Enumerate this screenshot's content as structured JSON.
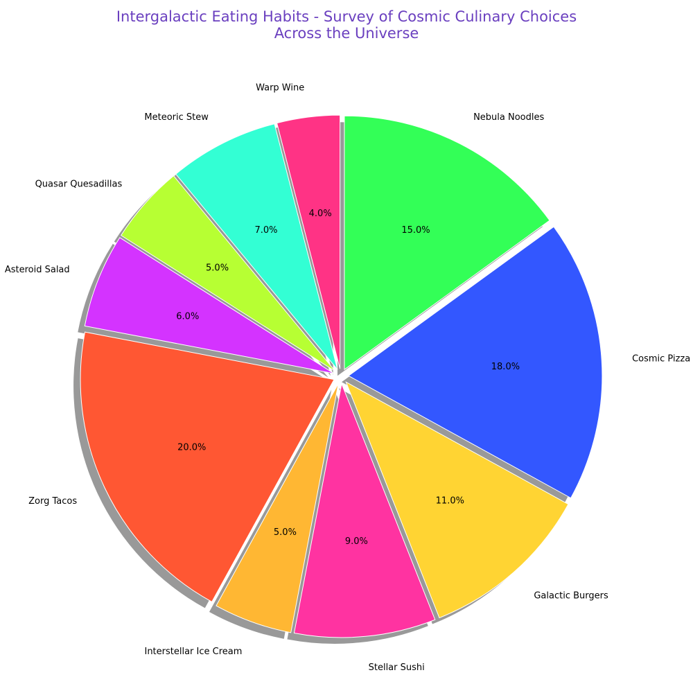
{
  "chart_data": {
    "type": "pie",
    "title": "Intergalactic Eating Habits - Survey of Cosmic Culinary Choices\nAcross the Universe",
    "slices": [
      {
        "label": "Nebula Noodles",
        "value": 15,
        "pct_label": "15.0%",
        "color": "#33ff57",
        "explode": 0.05
      },
      {
        "label": "Cosmic Pizza",
        "value": 18,
        "pct_label": "18.0%",
        "color": "#3357ff",
        "explode": 0.05
      },
      {
        "label": "Galactic Burgers",
        "value": 11,
        "pct_label": "11.0%",
        "color": "#ffd433",
        "explode": 0.05
      },
      {
        "label": "Stellar Sushi",
        "value": 9,
        "pct_label": "9.0%",
        "color": "#ff33a1",
        "explode": 0.05
      },
      {
        "label": "Interstellar Ice Cream",
        "value": 5,
        "pct_label": "5.0%",
        "color": "#ffb733",
        "explode": 0.05
      },
      {
        "label": "Zorg Tacos",
        "value": 20,
        "pct_label": "20.0%",
        "color": "#ff5733",
        "explode": 0.05
      },
      {
        "label": "Asteroid Salad",
        "value": 6,
        "pct_label": "6.0%",
        "color": "#d433ff",
        "explode": 0.05
      },
      {
        "label": "Quasar Quesadillas",
        "value": 5,
        "pct_label": "5.0%",
        "color": "#b7ff33",
        "explode": 0.05
      },
      {
        "label": "Meteoric Stew",
        "value": 7,
        "pct_label": "7.0%",
        "color": "#33ffd4",
        "explode": 0.05
      },
      {
        "label": "Warp Wine",
        "value": 4,
        "pct_label": "4.0%",
        "color": "#ff3385",
        "explode": 0.05
      }
    ],
    "start_angle": "12 o'clock",
    "direction": "clockwise",
    "shadow": true,
    "legend": "none"
  }
}
